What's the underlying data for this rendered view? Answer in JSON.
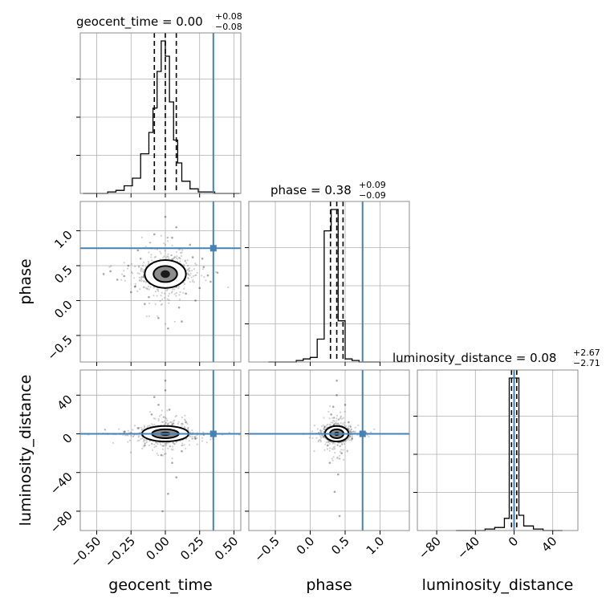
{
  "chart_data": {
    "type": "corner",
    "parameters": [
      "geocent_time",
      "phase",
      "luminosity_distance"
    ],
    "axis_labels": {
      "geocent_time": "geocent_time",
      "phase": "phase",
      "luminosity_distance": "luminosity_distance"
    },
    "ranges": {
      "geocent_time": [
        -0.62,
        0.55
      ],
      "phase": [
        -0.88,
        1.42
      ],
      "luminosity_distance": [
        -100,
        66
      ]
    },
    "ticks": {
      "geocent_time": [
        -0.5,
        -0.25,
        0.0,
        0.25,
        0.5
      ],
      "phase": [
        -0.5,
        0.0,
        0.5,
        1.0
      ],
      "luminosity_distance": [
        -80,
        -40,
        0,
        40
      ]
    },
    "tick_labels": {
      "geocent_time": [
        "−0.50",
        "−0.25",
        "0.00",
        "0.25",
        "0.50"
      ],
      "phase": [
        "−0.5",
        "0.0",
        "0.5",
        "1.0"
      ],
      "luminosity_distance": [
        "−80",
        "−40",
        "0",
        "40"
      ]
    },
    "truths": {
      "geocent_time": 0.35,
      "phase": 0.75,
      "luminosity_distance": 0.0
    },
    "summaries": {
      "geocent_time": {
        "label": "geocent_time",
        "median": "0.00",
        "plus": "+0.08",
        "minus": "−0.08",
        "median_value": 0.0,
        "lower": -0.08,
        "upper": 0.08
      },
      "phase": {
        "label": "phase",
        "median": "0.38",
        "plus": "+0.09",
        "minus": "−0.09",
        "median_value": 0.38,
        "lower": 0.29,
        "upper": 0.47
      },
      "luminosity_distance": {
        "label": "luminosity_distance",
        "median": "0.08",
        "plus": "+2.67",
        "minus": "−2.71",
        "median_value": 0.08,
        "lower": -2.63,
        "upper": 2.75
      }
    },
    "histograms": {
      "geocent_time": {
        "edges": [
          -0.6,
          -0.54,
          -0.48,
          -0.42,
          -0.36,
          -0.3,
          -0.24,
          -0.18,
          -0.12,
          -0.09,
          -0.06,
          -0.03,
          0.0,
          0.03,
          0.06,
          0.09,
          0.12,
          0.18,
          0.24,
          0.3,
          0.36,
          0.42,
          0.48,
          0.54
        ],
        "counts": [
          0,
          0,
          0,
          1,
          2,
          5,
          10,
          26,
          40,
          56,
          80,
          100,
          90,
          60,
          35,
          20,
          8,
          3,
          1,
          1,
          0,
          0,
          0
        ]
      },
      "phase": {
        "edges": [
          -0.6,
          -0.2,
          -0.1,
          0.0,
          0.1,
          0.2,
          0.3,
          0.4,
          0.5,
          0.6,
          0.7,
          0.8,
          0.9,
          1.0
        ],
        "counts": [
          0,
          1,
          2,
          3,
          15,
          86,
          100,
          27,
          2,
          1,
          0,
          0,
          0
        ]
      },
      "luminosity_distance": {
        "edges": [
          -60,
          -30,
          -20,
          -10,
          -5,
          5,
          10,
          20,
          30,
          50
        ],
        "counts": [
          0,
          1,
          2,
          8,
          100,
          10,
          3,
          1,
          0
        ]
      }
    },
    "scatter_points": {
      "geocent_time|phase": [
        [
          -0.3,
          0.35
        ],
        [
          0.28,
          0.48
        ],
        [
          -0.22,
          0.2
        ],
        [
          0.25,
          0.18
        ],
        [
          -0.05,
          -0.25
        ],
        [
          0.08,
          1.05
        ],
        [
          -0.4,
          0.42
        ],
        [
          0.31,
          0.36
        ],
        [
          -0.18,
          0.6
        ],
        [
          0.2,
          0.62
        ],
        [
          -0.12,
          0.05
        ],
        [
          0.15,
          0.1
        ],
        [
          0.02,
          -0.4
        ],
        [
          -0.27,
          0.5
        ],
        [
          0.33,
          0.27
        ],
        [
          -0.35,
          0.3
        ],
        [
          0.18,
          0.8
        ],
        [
          -0.1,
          0.75
        ],
        [
          0.1,
          -0.1
        ],
        [
          -0.15,
          -0.05
        ],
        [
          0.05,
          0.9
        ],
        [
          -0.25,
          0.12
        ],
        [
          0.27,
          0.6
        ],
        [
          0.38,
          0.4
        ],
        [
          -0.45,
          0.38
        ],
        [
          0.12,
          -0.3
        ],
        [
          -0.08,
          0.95
        ],
        [
          0.22,
          0.0
        ],
        [
          -0.2,
          0.72
        ],
        [
          0.0,
          1.2
        ]
      ],
      "geocent_time|luminosity_distance": [
        [
          -0.3,
          2
        ],
        [
          0.28,
          -1
        ],
        [
          -0.2,
          6
        ],
        [
          0.22,
          -5
        ],
        [
          0.0,
          45
        ],
        [
          0.02,
          -62
        ],
        [
          -0.05,
          30
        ],
        [
          0.05,
          -30
        ],
        [
          -0.1,
          20
        ],
        [
          0.12,
          -18
        ],
        [
          0.0,
          55
        ],
        [
          -0.02,
          -80
        ],
        [
          0.15,
          12
        ],
        [
          -0.15,
          -12
        ],
        [
          0.35,
          1
        ],
        [
          -0.42,
          0
        ],
        [
          0.08,
          -45
        ],
        [
          -0.08,
          38
        ],
        [
          0.03,
          25
        ],
        [
          -0.03,
          -22
        ]
      ],
      "phase|luminosity_distance": [
        [
          0.3,
          20
        ],
        [
          0.45,
          -20
        ],
        [
          0.38,
          40
        ],
        [
          0.4,
          -42
        ],
        [
          0.2,
          5
        ],
        [
          0.6,
          -5
        ],
        [
          0.35,
          -60
        ],
        [
          0.42,
          -85
        ],
        [
          0.5,
          30
        ],
        [
          0.28,
          -30
        ],
        [
          0.55,
          12
        ],
        [
          0.25,
          -12
        ],
        [
          -0.1,
          0
        ],
        [
          0.8,
          1
        ],
        [
          0.38,
          55
        ],
        [
          0.33,
          28
        ]
      ]
    },
    "scatter_spread": {
      "geocent_time|phase": [
        0.075,
        0.1
      ],
      "geocent_time|luminosity_distance": [
        0.085,
        4
      ],
      "phase|luminosity_distance": [
        0.085,
        4
      ]
    },
    "contour_levels": [
      1.0,
      2.0
    ],
    "title_separator": " = "
  }
}
